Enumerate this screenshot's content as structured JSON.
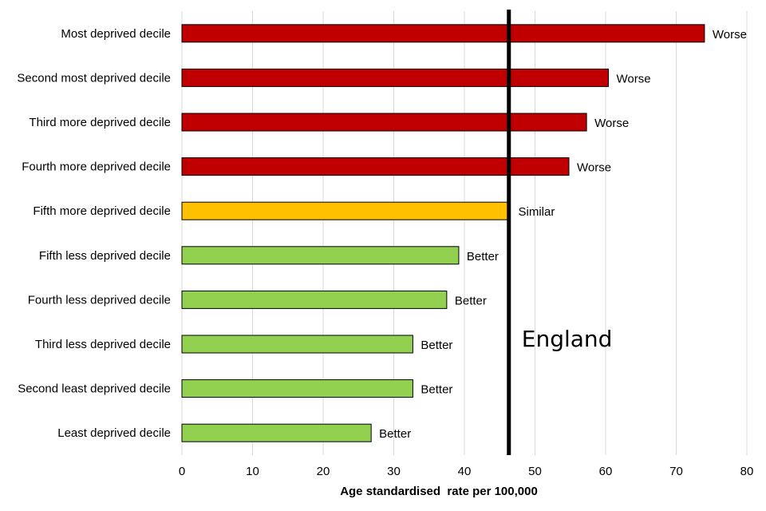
{
  "chart_data": {
    "type": "bar",
    "orientation": "horizontal",
    "categories": [
      "Most deprived decile",
      "Second most deprived decile",
      "Third more deprived decile",
      "Fourth more deprived decile",
      "Fifth more deprived decile",
      "Fifth less deprived decile",
      "Fourth less deprived decile",
      "Third less deprived decile",
      "Second least deprived decile",
      "Least deprived decile"
    ],
    "values": [
      74.0,
      60.4,
      57.3,
      54.8,
      46.5,
      39.2,
      37.5,
      32.7,
      32.7,
      26.8
    ],
    "comparison": [
      "Worse",
      "Worse",
      "Worse",
      "Worse",
      "Similar",
      "Better",
      "Better",
      "Better",
      "Better",
      "Better"
    ],
    "comparison_colors": {
      "Worse": "#C00000",
      "Similar": "#FFC000",
      "Better": "#92D050"
    },
    "xlabel": "Age standardised  rate per 100,000",
    "xlim": [
      0,
      80
    ],
    "xticks": [
      0,
      10,
      20,
      30,
      40,
      50,
      60,
      70,
      80
    ],
    "grid": true,
    "reference_line": {
      "label": "England",
      "value": 46.3,
      "color": "#000000"
    }
  }
}
